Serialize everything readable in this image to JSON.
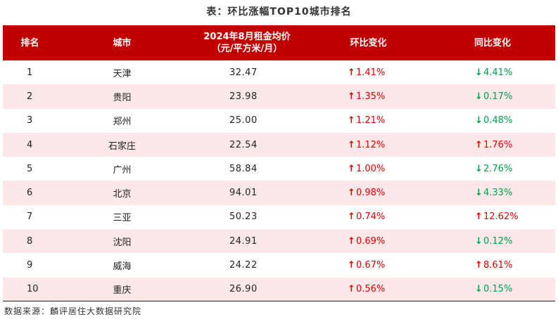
{
  "title": "表：环比涨幅TOP10城市排名",
  "headers": {
    "rank": "排名",
    "city": "城市",
    "price_line1": "2024年8月租金均价",
    "price_line2": "（元/平方米/月）",
    "mom": "环比变化",
    "yoy": "同比变化"
  },
  "colors": {
    "header_bg": "#c00000",
    "alt_row": "#fce8e8",
    "up": "#e00000",
    "down": "#00a050"
  },
  "rows": [
    {
      "rank": "1",
      "city": "天津",
      "price": "32.47",
      "mom": "1.41%",
      "mom_dir": "up",
      "yoy": "4.41%",
      "yoy_dir": "down"
    },
    {
      "rank": "2",
      "city": "贵阳",
      "price": "23.98",
      "mom": "1.35%",
      "mom_dir": "up",
      "yoy": "0.17%",
      "yoy_dir": "down"
    },
    {
      "rank": "3",
      "city": "郑州",
      "price": "25.00",
      "mom": "1.21%",
      "mom_dir": "up",
      "yoy": "0.48%",
      "yoy_dir": "down"
    },
    {
      "rank": "4",
      "city": "石家庄",
      "price": "22.54",
      "mom": "1.12%",
      "mom_dir": "up",
      "yoy": "1.76%",
      "yoy_dir": "up"
    },
    {
      "rank": "5",
      "city": "广州",
      "price": "58.84",
      "mom": "1.00%",
      "mom_dir": "up",
      "yoy": "2.76%",
      "yoy_dir": "down"
    },
    {
      "rank": "6",
      "city": "北京",
      "price": "94.01",
      "mom": "0.98%",
      "mom_dir": "up",
      "yoy": "4.33%",
      "yoy_dir": "down"
    },
    {
      "rank": "7",
      "city": "三亚",
      "price": "50.23",
      "mom": "0.74%",
      "mom_dir": "up",
      "yoy": "12.62%",
      "yoy_dir": "up"
    },
    {
      "rank": "8",
      "city": "沈阳",
      "price": "24.91",
      "mom": "0.69%",
      "mom_dir": "up",
      "yoy": "0.12%",
      "yoy_dir": "down"
    },
    {
      "rank": "9",
      "city": "威海",
      "price": "24.22",
      "mom": "0.67%",
      "mom_dir": "up",
      "yoy": "8.61%",
      "yoy_dir": "up"
    },
    {
      "rank": "10",
      "city": "重庆",
      "price": "26.90",
      "mom": "0.56%",
      "mom_dir": "up",
      "yoy": "0.15%",
      "yoy_dir": "down"
    }
  ],
  "source": "数据来源：麟评居住大数据研究院"
}
